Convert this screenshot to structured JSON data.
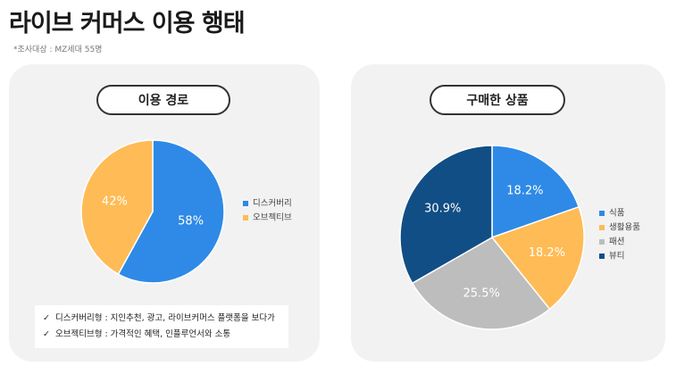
{
  "page": {
    "title": "라이브 커머스 이용 행태",
    "survey_note": "*조사대상 : MZ세대 55명"
  },
  "usage_path": {
    "heading": "이용 경로",
    "notes": [
      "디스커버리형 : 지인추천, 광고, 라이브커머스 플랫폼을 보다가",
      "오브젝티브형 : 가격적인 혜택, 인플루언서와 소통"
    ],
    "check_glyph": "✓"
  },
  "purchased_items": {
    "heading": "구매한 상품"
  },
  "chart_data": [
    {
      "type": "pie",
      "title": "이용 경로",
      "categories": [
        "디스커버리",
        "오브젝티브"
      ],
      "values": [
        58,
        42
      ],
      "labels": [
        "58%",
        "42%"
      ],
      "colors": [
        "#2e8ae6",
        "#ffbb55"
      ],
      "legend_position": "right",
      "start_angle_deg": 0,
      "direction": "clockwise"
    },
    {
      "type": "pie",
      "title": "구매한 상품",
      "categories": [
        "식품",
        "생활용품",
        "패션",
        "뷰티"
      ],
      "values": [
        18.2,
        18.2,
        25.5,
        30.9
      ],
      "labels": [
        "18.2%",
        "18.2%",
        "25.5%",
        "30.9%"
      ],
      "colors": [
        "#2e8ae6",
        "#ffbb55",
        "#bdbdbd",
        "#114e85"
      ],
      "legend_position": "right",
      "start_angle_deg": 0,
      "direction": "clockwise"
    }
  ]
}
